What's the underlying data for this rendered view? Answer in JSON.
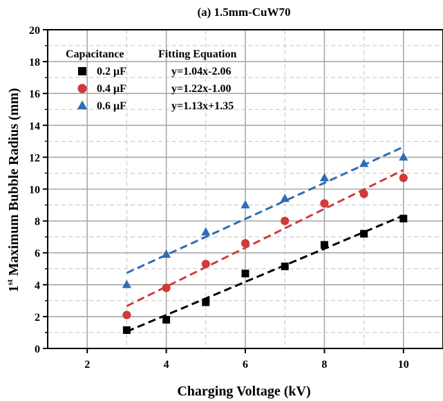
{
  "chart_data": {
    "type": "scatter",
    "title": "(a)  1.5mm-CuW70",
    "xlabel": "Charging Voltage (kV)",
    "ylabel_sup": "st",
    "ylabel_pre": "1",
    "ylabel_rest": " Maximum Bubble Radius (mm)",
    "xlim": [
      1,
      11
    ],
    "ylim": [
      0,
      20
    ],
    "xticks": [
      2,
      4,
      6,
      8,
      10
    ],
    "yticks": [
      0,
      2,
      4,
      6,
      8,
      10,
      12,
      14,
      16,
      18,
      20
    ],
    "grid": true,
    "legend": {
      "placement": "top-left",
      "header_series": "Capacitance",
      "header_fit": "Fitting Equation"
    },
    "series": [
      {
        "name": "0.2 μF",
        "marker": "square",
        "color": "#000000",
        "fit_color": "#000000",
        "equation": "y=1.04x-2.06",
        "fit": {
          "slope": 1.04,
          "intercept": -2.06
        },
        "x": [
          3,
          4,
          5,
          6,
          7,
          8,
          9,
          10
        ],
        "y": [
          1.15,
          1.8,
          2.9,
          4.7,
          5.15,
          6.5,
          7.2,
          8.15
        ]
      },
      {
        "name": "0.4 μF",
        "marker": "circle",
        "color": "#d03a3a",
        "fit_color": "#d03a3a",
        "equation": "y=1.22x-1.00",
        "fit": {
          "slope": 1.22,
          "intercept": -1.0
        },
        "x": [
          3,
          4,
          5,
          6,
          7,
          8,
          9,
          10
        ],
        "y": [
          2.1,
          3.8,
          5.3,
          6.6,
          8.0,
          9.1,
          9.7,
          10.7
        ]
      },
      {
        "name": "0.6 μF",
        "marker": "triangle",
        "color": "#2f6db5",
        "fit_color": "#2f6db5",
        "equation": "y=1.13x+1.35",
        "fit": {
          "slope": 1.13,
          "intercept": 1.35
        },
        "x": [
          3,
          4,
          5,
          6,
          7,
          8,
          9,
          10
        ],
        "y": [
          4.0,
          5.9,
          7.3,
          9.0,
          9.4,
          10.7,
          11.6,
          12.0
        ]
      }
    ]
  }
}
